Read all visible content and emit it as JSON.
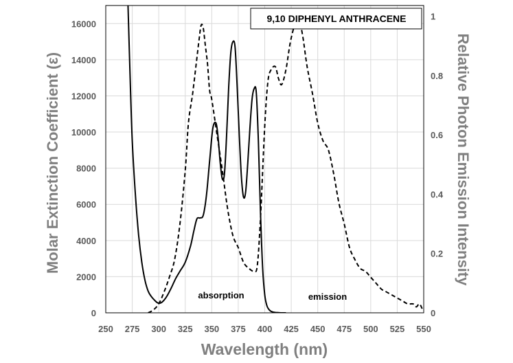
{
  "chart_data": {
    "type": "line",
    "title": "9,10 DIPHENYL ANTHRACENE",
    "xlabel": "Wavelength (nm)",
    "ylabel": "Molar Extinction Coefficient  (ε)",
    "y2label": "Relative Photon Emission Intensity",
    "xlim": [
      250,
      550
    ],
    "ylim": [
      0,
      17000
    ],
    "y2lim": [
      0,
      1.0365
    ],
    "x_ticks": [
      "250",
      "275",
      "300",
      "325",
      "350",
      "375",
      "400",
      "425",
      "450",
      "475",
      "500",
      "525",
      "550"
    ],
    "y_ticks": [
      "0",
      "2000",
      "4000",
      "6000",
      "8000",
      "10000",
      "12000",
      "14000",
      "16000"
    ],
    "y2_ticks": [
      "0",
      "0.2",
      "0.4",
      "0.6",
      "0.8",
      "1"
    ],
    "grid": true,
    "series": [
      {
        "name": "absorption",
        "style": "solid",
        "axis": "left",
        "x": [
          271,
          273,
          275,
          278,
          281,
          284,
          287,
          290,
          293,
          296,
          299,
          302,
          305,
          308,
          312,
          316,
          320,
          325,
          330,
          333,
          336,
          339,
          342,
          345,
          348,
          351,
          354,
          356,
          358,
          360,
          362,
          364,
          366,
          368,
          370,
          372,
          374,
          376,
          378,
          380,
          382,
          384,
          386,
          388,
          390,
          392,
          394,
          396,
          398,
          400,
          402,
          404,
          406,
          408,
          410,
          413,
          416,
          420
        ],
        "values": [
          17000,
          13000,
          9500,
          6500,
          4300,
          2800,
          1800,
          1200,
          900,
          700,
          550,
          550,
          700,
          950,
          1400,
          1900,
          2300,
          2800,
          3700,
          4500,
          5200,
          5250,
          5400,
          6500,
          8400,
          10200,
          10500,
          9700,
          8300,
          7400,
          7700,
          9800,
          12500,
          14400,
          15000,
          14700,
          12500,
          9800,
          7500,
          6400,
          6700,
          8300,
          10200,
          11800,
          12400,
          12200,
          9500,
          5500,
          2500,
          1000,
          400,
          180,
          80,
          40,
          20,
          10,
          0,
          0
        ]
      },
      {
        "name": "emission",
        "style": "dashed",
        "axis": "right",
        "x": [
          290,
          295,
          300,
          305,
          310,
          315,
          320,
          325,
          328,
          332,
          336,
          338,
          340,
          342,
          344,
          346,
          348,
          350,
          355,
          360,
          365,
          370,
          375,
          380,
          385,
          390,
          393,
          396,
          400,
          403,
          406,
          410,
          413,
          416,
          420,
          424,
          428,
          430,
          433,
          436,
          440,
          445,
          450,
          455,
          460,
          465,
          470,
          475,
          480,
          485,
          490,
          495,
          500,
          505,
          510,
          515,
          520,
          525,
          530,
          535,
          540,
          543,
          546,
          549
        ],
        "values": [
          0.0,
          0.01,
          0.03,
          0.07,
          0.12,
          0.18,
          0.3,
          0.48,
          0.64,
          0.74,
          0.86,
          0.92,
          0.97,
          0.96,
          0.9,
          0.84,
          0.75,
          0.72,
          0.6,
          0.48,
          0.35,
          0.26,
          0.22,
          0.17,
          0.15,
          0.14,
          0.16,
          0.32,
          0.63,
          0.78,
          0.82,
          0.83,
          0.79,
          0.77,
          0.82,
          0.91,
          0.97,
          0.99,
          0.98,
          0.93,
          0.83,
          0.74,
          0.64,
          0.58,
          0.55,
          0.47,
          0.37,
          0.3,
          0.22,
          0.18,
          0.15,
          0.14,
          0.12,
          0.1,
          0.08,
          0.07,
          0.06,
          0.05,
          0.04,
          0.03,
          0.03,
          0.02,
          0.03,
          0.01
        ]
      }
    ],
    "annotations": [
      "absorption",
      "emission"
    ]
  }
}
